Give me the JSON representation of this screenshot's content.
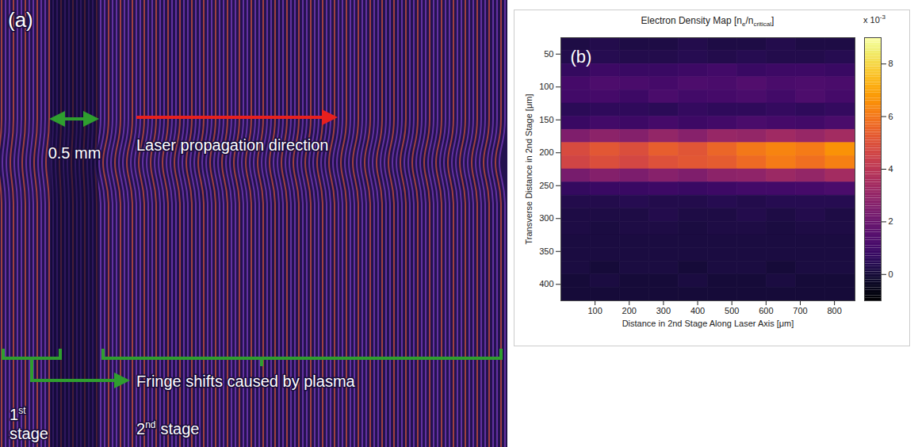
{
  "chart_data": {
    "type": "heatmap",
    "panel": "(b)",
    "title_parts": [
      {
        "text": "Electron Density Map [n"
      },
      {
        "text": "e",
        "sub": true
      },
      {
        "text": "/n"
      },
      {
        "text": "critical",
        "sub": true
      },
      {
        "text": "]"
      }
    ],
    "xlabel": "Distance in 2nd Stage Along Laser Axis [μm]",
    "ylabel": "Transverse Distance in 2nd Stage [μm]",
    "x": [
      43,
      129,
      215,
      301,
      387,
      473,
      559,
      645,
      731,
      817
    ],
    "y": [
      35,
      55,
      75,
      95,
      115,
      135,
      155,
      175,
      195,
      215,
      235,
      255,
      275,
      295,
      315,
      335,
      355,
      375,
      395,
      415
    ],
    "values": [
      [
        0.2,
        0.3,
        0.2,
        0.2,
        0.3,
        0.2,
        0.2,
        0.3,
        0.2,
        0.2
      ],
      [
        0.3,
        0.4,
        0.3,
        0.3,
        0.4,
        0.3,
        0.4,
        0.3,
        0.3,
        0.4
      ],
      [
        0.7,
        0.9,
        0.8,
        0.8,
        0.9,
        1.0,
        0.8,
        0.9,
        0.9,
        0.8
      ],
      [
        1.1,
        1.3,
        1.2,
        1.1,
        1.3,
        1.2,
        1.4,
        1.2,
        1.3,
        1.2
      ],
      [
        1.0,
        1.1,
        0.9,
        1.2,
        1.0,
        1.1,
        1.2,
        1.0,
        1.3,
        1.1
      ],
      [
        0.5,
        0.6,
        0.6,
        0.5,
        0.7,
        0.6,
        0.6,
        0.7,
        0.6,
        0.7
      ],
      [
        0.8,
        1.0,
        0.9,
        1.1,
        0.9,
        1.0,
        1.2,
        1.1,
        1.0,
        1.2
      ],
      [
        2.5,
        2.8,
        2.6,
        3.0,
        2.7,
        3.1,
        3.0,
        3.3,
        3.1,
        3.4
      ],
      [
        4.8,
        5.2,
        4.9,
        5.4,
        5.1,
        5.6,
        6.0,
        6.3,
        6.1,
        6.6
      ],
      [
        4.6,
        4.9,
        4.7,
        5.0,
        5.2,
        5.3,
        5.7,
        6.1,
        5.8,
        6.2
      ],
      [
        2.3,
        2.6,
        2.4,
        2.7,
        2.5,
        2.8,
        2.9,
        3.2,
        3.0,
        3.4
      ],
      [
        0.7,
        0.8,
        0.8,
        0.9,
        0.8,
        0.9,
        1.0,
        1.0,
        1.1,
        1.2
      ],
      [
        0.3,
        0.3,
        0.4,
        0.3,
        0.3,
        0.4,
        0.3,
        0.4,
        0.4,
        0.4
      ],
      [
        0.2,
        0.2,
        0.2,
        0.3,
        0.2,
        0.2,
        0.3,
        0.2,
        0.3,
        0.2
      ],
      [
        0.2,
        0.1,
        0.2,
        0.2,
        0.1,
        0.2,
        0.2,
        0.1,
        0.2,
        0.2
      ],
      [
        0.1,
        0.1,
        0.1,
        0.1,
        0.1,
        0.1,
        0.1,
        0.1,
        0.1,
        0.1
      ],
      [
        0.1,
        0.1,
        0.1,
        0.1,
        0.1,
        0.1,
        0.1,
        0.1,
        0.1,
        0.1
      ],
      [
        0.1,
        0.0,
        0.1,
        0.1,
        0.0,
        0.1,
        0.1,
        0.0,
        0.1,
        0.1
      ],
      [
        0.0,
        0.1,
        0.0,
        0.0,
        0.1,
        0.0,
        0.0,
        0.1,
        0.0,
        0.0
      ],
      [
        0.0,
        0.0,
        0.0,
        0.0,
        0.0,
        0.0,
        0.0,
        0.0,
        0.0,
        0.0
      ]
    ],
    "xlim": [
      0,
      860
    ],
    "ylim": [
      425,
      25
    ],
    "xticks": [
      100,
      200,
      300,
      400,
      500,
      600,
      700,
      800
    ],
    "yticks": [
      50,
      100,
      150,
      200,
      250,
      300,
      350,
      400
    ],
    "color": "inferno",
    "colorbar": {
      "range": [
        -1,
        9
      ],
      "ticks": [
        0,
        2,
        4,
        6,
        8
      ],
      "multiplier": "x 10",
      "exponent": "-3"
    }
  },
  "image_panel": {
    "letter": "(a)",
    "scale_label": "0.5 mm",
    "direction_label": "Laser propagation direction",
    "bracket_label": "Fringe shifts caused by plasma",
    "stage_1": {
      "number": "1",
      "suffix": "st",
      "word": "stage"
    },
    "stage_2": {
      "number": "2",
      "suffix": "nd",
      "word": "stage"
    }
  }
}
